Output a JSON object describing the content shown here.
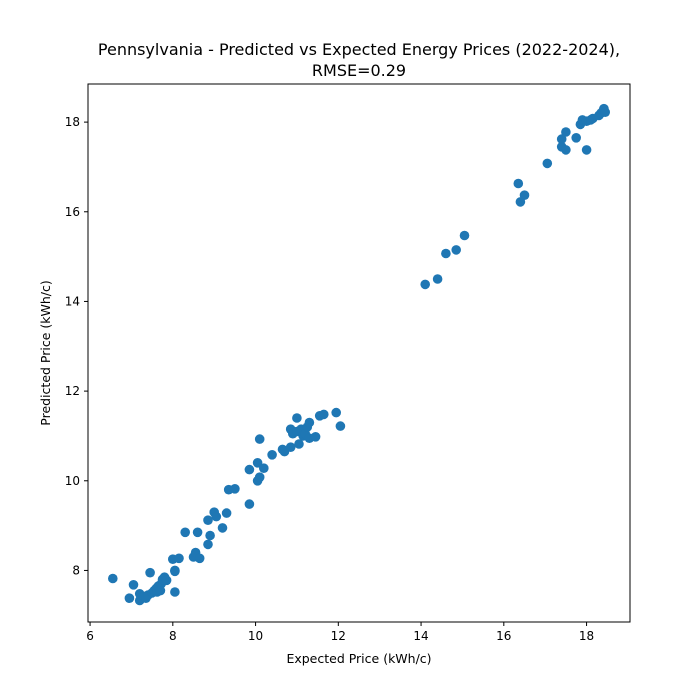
{
  "chart_data": {
    "type": "scatter",
    "title_line1": "Pennsylvania - Predicted vs Expected Energy Prices (2022-2024),",
    "title_line2": "RMSE=0.29",
    "xlabel": "Expected Price (kWh/c)",
    "ylabel": "Predicted Price (kWh/c)",
    "xlim": [
      5.95,
      19.05
    ],
    "ylim": [
      6.85,
      18.85
    ],
    "xticks": [
      6,
      8,
      10,
      12,
      14,
      16,
      18
    ],
    "yticks": [
      8,
      10,
      12,
      14,
      16,
      18
    ],
    "grid": false,
    "marker_color": "#1f77b4",
    "points": [
      [
        6.55,
        7.82
      ],
      [
        6.95,
        7.38
      ],
      [
        7.05,
        7.68
      ],
      [
        7.2,
        7.33
      ],
      [
        7.2,
        7.48
      ],
      [
        7.3,
        7.42
      ],
      [
        7.35,
        7.38
      ],
      [
        7.4,
        7.45
      ],
      [
        7.45,
        7.95
      ],
      [
        7.5,
        7.5
      ],
      [
        7.55,
        7.55
      ],
      [
        7.6,
        7.6
      ],
      [
        7.62,
        7.52
      ],
      [
        7.65,
        7.65
      ],
      [
        7.7,
        7.55
      ],
      [
        7.72,
        7.7
      ],
      [
        7.75,
        7.8
      ],
      [
        7.8,
        7.85
      ],
      [
        7.85,
        7.78
      ],
      [
        8.0,
        8.25
      ],
      [
        8.05,
        7.98
      ],
      [
        8.05,
        7.52
      ],
      [
        8.05,
        8.0
      ],
      [
        8.15,
        8.27
      ],
      [
        8.3,
        8.85
      ],
      [
        8.5,
        8.3
      ],
      [
        8.55,
        8.4
      ],
      [
        8.6,
        8.85
      ],
      [
        8.65,
        8.27
      ],
      [
        8.85,
        9.12
      ],
      [
        8.85,
        8.58
      ],
      [
        8.9,
        8.78
      ],
      [
        9.0,
        9.3
      ],
      [
        9.05,
        9.2
      ],
      [
        9.2,
        8.95
      ],
      [
        9.3,
        9.28
      ],
      [
        9.35,
        9.8
      ],
      [
        9.5,
        9.82
      ],
      [
        9.85,
        10.25
      ],
      [
        9.85,
        9.48
      ],
      [
        10.05,
        10.0
      ],
      [
        10.05,
        10.4
      ],
      [
        10.1,
        10.93
      ],
      [
        10.1,
        10.08
      ],
      [
        10.2,
        10.28
      ],
      [
        10.4,
        10.58
      ],
      [
        10.65,
        10.7
      ],
      [
        10.7,
        10.65
      ],
      [
        10.85,
        11.15
      ],
      [
        10.85,
        10.75
      ],
      [
        10.9,
        11.05
      ],
      [
        11.0,
        11.1
      ],
      [
        11.0,
        11.4
      ],
      [
        11.05,
        10.82
      ],
      [
        11.1,
        11.15
      ],
      [
        11.15,
        11.0
      ],
      [
        11.2,
        11.05
      ],
      [
        11.25,
        11.2
      ],
      [
        11.3,
        11.3
      ],
      [
        11.3,
        10.95
      ],
      [
        11.45,
        10.98
      ],
      [
        11.55,
        11.45
      ],
      [
        11.65,
        11.48
      ],
      [
        11.95,
        11.52
      ],
      [
        12.05,
        11.22
      ],
      [
        14.1,
        14.38
      ],
      [
        14.4,
        14.5
      ],
      [
        14.6,
        15.07
      ],
      [
        14.85,
        15.15
      ],
      [
        15.05,
        15.47
      ],
      [
        16.35,
        16.63
      ],
      [
        16.4,
        16.22
      ],
      [
        16.5,
        16.37
      ],
      [
        17.05,
        17.08
      ],
      [
        17.4,
        17.45
      ],
      [
        17.4,
        17.62
      ],
      [
        17.5,
        17.38
      ],
      [
        17.5,
        17.78
      ],
      [
        17.75,
        17.65
      ],
      [
        17.85,
        17.95
      ],
      [
        17.9,
        18.05
      ],
      [
        18.0,
        17.38
      ],
      [
        18.0,
        18.02
      ],
      [
        18.1,
        18.05
      ],
      [
        18.15,
        18.08
      ],
      [
        18.3,
        18.15
      ],
      [
        18.35,
        18.2
      ],
      [
        18.4,
        18.25
      ],
      [
        18.42,
        18.3
      ],
      [
        18.45,
        18.22
      ]
    ]
  }
}
